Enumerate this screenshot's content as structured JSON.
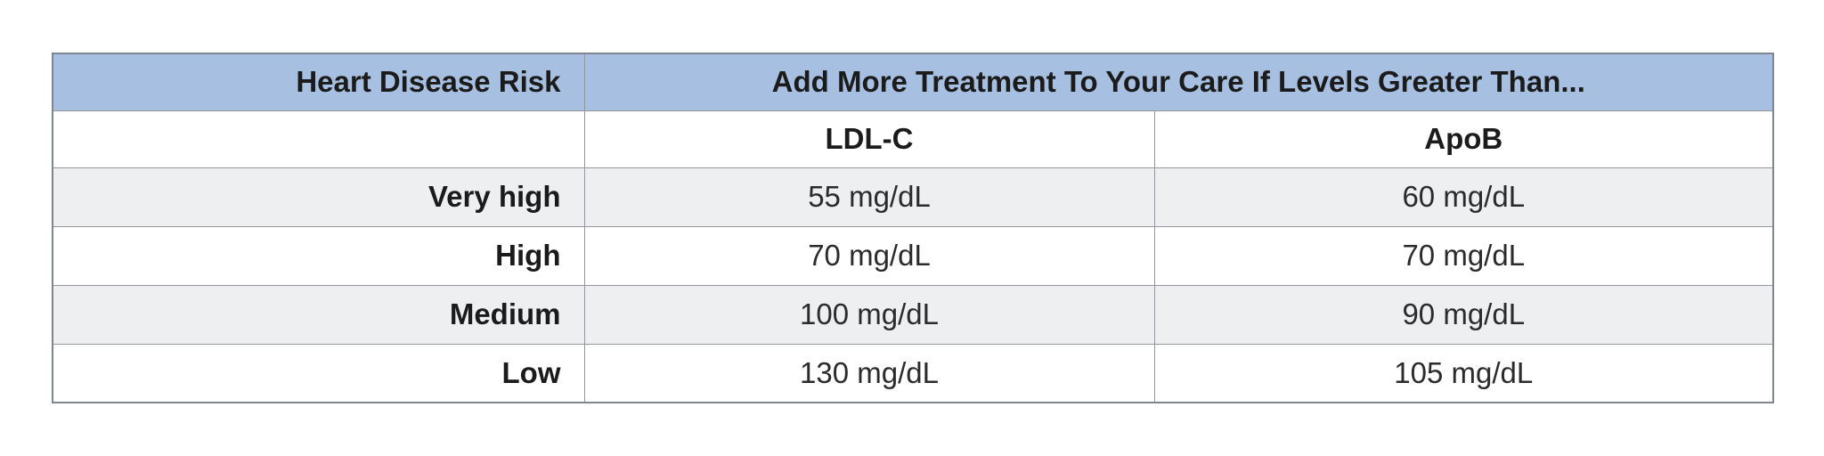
{
  "colors": {
    "header_bg": "#a7c0e2",
    "stripe_bg": "#edeff1",
    "border_inner": "#949699",
    "border_outer": "#7f8693",
    "text": "#1b1b1b",
    "text_value": "#2b2b2b"
  },
  "table": {
    "header": {
      "risk": "Heart Disease Risk",
      "treatment": "Add More Treatment To Your Care If Levels Greater Than..."
    },
    "columns": {
      "ldl": "LDL-C",
      "apob": "ApoB"
    },
    "rows": [
      {
        "label": "Very high",
        "ldl": "55 mg/dL",
        "apob": "60 mg/dL"
      },
      {
        "label": "High",
        "ldl": "70 mg/dL",
        "apob": "70 mg/dL"
      },
      {
        "label": "Medium",
        "ldl": "100 mg/dL",
        "apob": "90 mg/dL"
      },
      {
        "label": "Low",
        "ldl": "130 mg/dL",
        "apob": "105 mg/dL"
      }
    ]
  },
  "chart_data": {
    "type": "table",
    "title": "Add More Treatment To Your Care If Levels Greater Than...",
    "columns": [
      "Heart Disease Risk",
      "LDL-C",
      "ApoB"
    ],
    "rows": [
      [
        "Very high",
        "55 mg/dL",
        "60 mg/dL"
      ],
      [
        "High",
        "70 mg/dL",
        "70 mg/dL"
      ],
      [
        "Medium",
        "100 mg/dL",
        "90 mg/dL"
      ],
      [
        "Low",
        "130 mg/dL",
        "105 mg/dL"
      ]
    ],
    "units": "mg/dL",
    "series": [
      {
        "name": "LDL-C",
        "values": [
          55,
          70,
          100,
          130
        ]
      },
      {
        "name": "ApoB",
        "values": [
          60,
          70,
          90,
          105
        ]
      }
    ],
    "categories": [
      "Very high",
      "High",
      "Medium",
      "Low"
    ]
  }
}
